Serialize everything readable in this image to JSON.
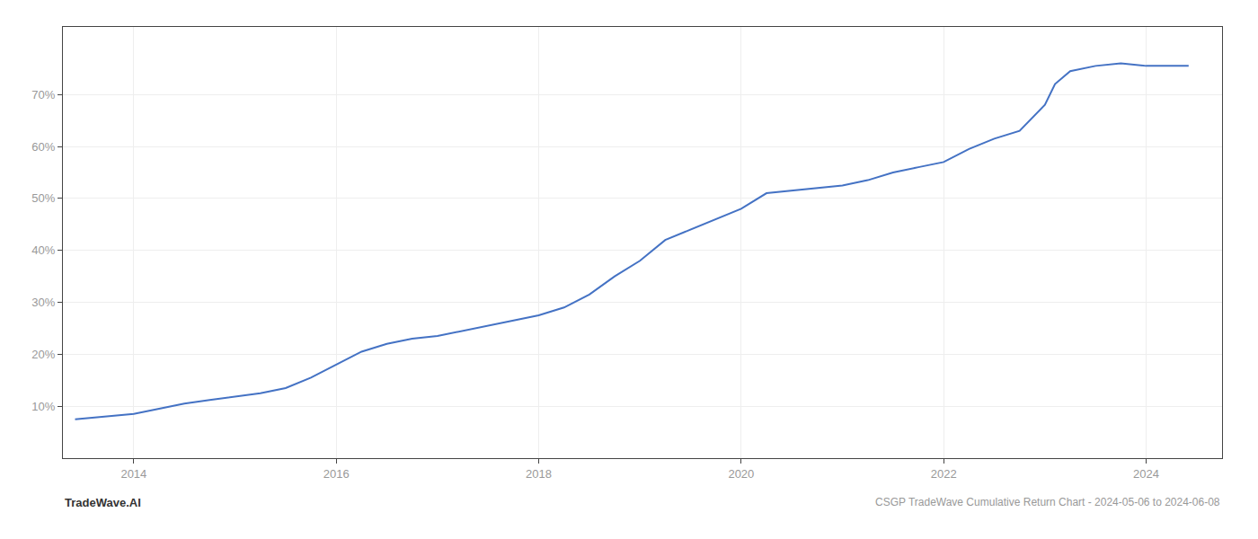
{
  "chart_data": {
    "type": "line",
    "title": "CSGP TradeWave Cumulative Return Chart - 2024-05-06 to 2024-06-08",
    "annotations": [
      "TradeWave.AI"
    ],
    "x": [
      2013.42,
      2013.75,
      2014.0,
      2014.25,
      2014.5,
      2014.75,
      2015.0,
      2015.25,
      2015.5,
      2015.75,
      2016.0,
      2016.25,
      2016.5,
      2016.75,
      2017.0,
      2017.25,
      2017.5,
      2017.75,
      2018.0,
      2018.25,
      2018.5,
      2018.75,
      2019.0,
      2019.25,
      2019.5,
      2019.75,
      2020.0,
      2020.25,
      2020.5,
      2020.75,
      2021.0,
      2021.25,
      2021.5,
      2021.75,
      2022.0,
      2022.25,
      2022.5,
      2022.75,
      2023.0,
      2023.1,
      2023.25,
      2023.5,
      2023.75,
      2024.0,
      2024.42
    ],
    "values": [
      7.5,
      8.0,
      8.5,
      9.5,
      10.5,
      11.2,
      11.8,
      12.5,
      13.5,
      15.5,
      18.0,
      20.5,
      22.0,
      23.0,
      23.5,
      24.5,
      25.5,
      26.5,
      27.5,
      29.0,
      31.5,
      35.0,
      38.0,
      42.0,
      44.0,
      46.0,
      48.0,
      51.0,
      51.5,
      52.0,
      52.5,
      53.5,
      55.0,
      56.0,
      57.0,
      59.5,
      61.5,
      63.0,
      68.0,
      72.0,
      74.5,
      75.5,
      76.0,
      75.5,
      75.5
    ],
    "color": "#4472c4",
    "xlim": [
      2013.3,
      2024.75
    ],
    "xticks": [
      2014,
      2016,
      2018,
      2020,
      2022,
      2024
    ],
    "ylim": [
      0,
      83
    ],
    "yticks": [
      {
        "value": 10,
        "label": "10%"
      },
      {
        "value": 20,
        "label": "20%"
      },
      {
        "value": 30,
        "label": "30%"
      },
      {
        "value": 40,
        "label": "40%"
      },
      {
        "value": 50,
        "label": "50%"
      },
      {
        "value": 60,
        "label": "60%"
      },
      {
        "value": 70,
        "label": "70%"
      }
    ],
    "grid": true
  }
}
